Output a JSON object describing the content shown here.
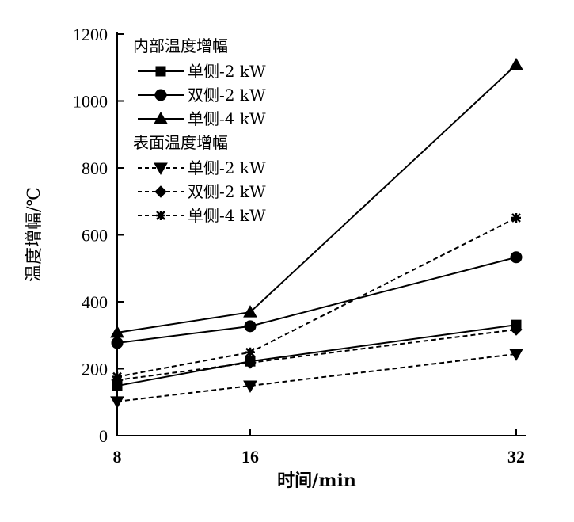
{
  "chart_data": {
    "type": "line",
    "title": "",
    "xlabel": "时间/min",
    "ylabel": "温度增幅/℃",
    "x": [
      8,
      16,
      32
    ],
    "x_ticks": [
      "8",
      "16",
      "32"
    ],
    "ylim": [
      0,
      1200
    ],
    "y_ticks": [
      "0",
      "200",
      "400",
      "600",
      "800",
      "1000",
      "1200"
    ],
    "grid": false,
    "legend_placement": "top-left",
    "legend_groups": [
      {
        "title": "内部温度增幅",
        "series_indices": [
          0,
          1,
          2
        ]
      },
      {
        "title": "表面温度增幅",
        "series_indices": [
          3,
          4,
          5
        ]
      }
    ],
    "series": [
      {
        "name": "单侧-2 kW",
        "group": "内部温度增幅",
        "marker": "square",
        "dash": "solid",
        "values": [
          149,
          222,
          331
        ]
      },
      {
        "name": "双侧-2 kW",
        "group": "内部温度增幅",
        "marker": "circle",
        "dash": "solid",
        "values": [
          277,
          327,
          533
        ]
      },
      {
        "name": "单侧-4 kW",
        "group": "内部温度增幅",
        "marker": "triangle-up",
        "dash": "solid",
        "values": [
          308,
          369,
          1108
        ]
      },
      {
        "name": "单侧-2 kW",
        "group": "表面温度增幅",
        "marker": "triangle-down",
        "dash": "dashed",
        "values": [
          102,
          149,
          244
        ]
      },
      {
        "name": "双侧-2 kW",
        "group": "表面温度增幅",
        "marker": "diamond",
        "dash": "dashed",
        "values": [
          166,
          218,
          317
        ]
      },
      {
        "name": "单侧-4 kW",
        "group": "表面温度增幅",
        "marker": "asterisk",
        "dash": "dashed",
        "values": [
          176,
          249,
          651
        ]
      }
    ],
    "color": "#000000"
  }
}
